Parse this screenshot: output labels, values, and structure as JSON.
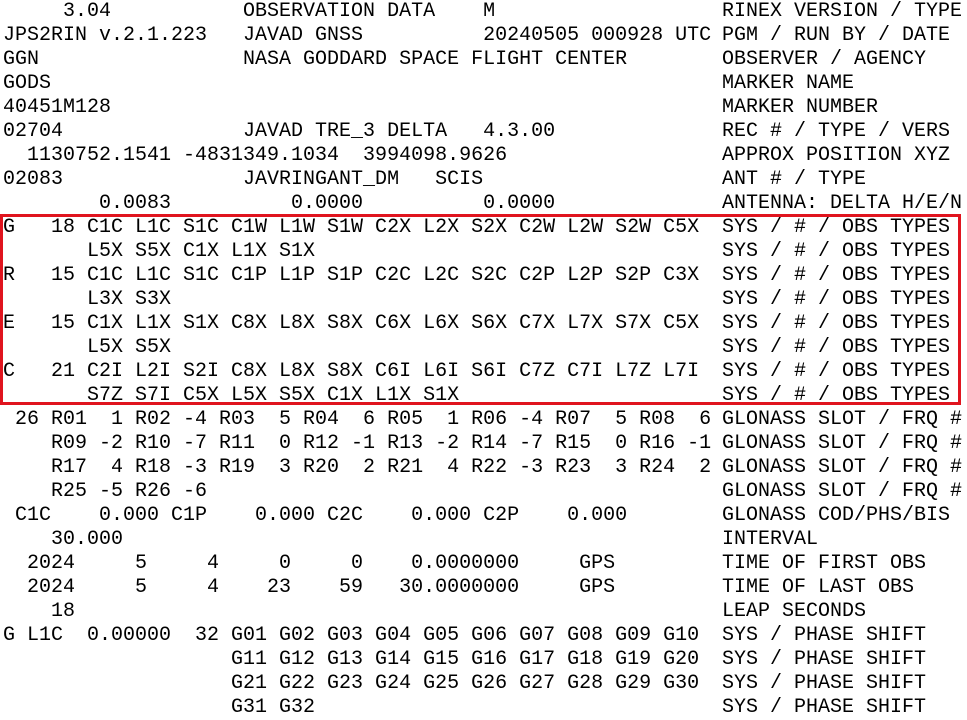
{
  "highlight_color": "#e0141e",
  "header_lines": [
    {
      "data": "     3.04           OBSERVATION DATA    M",
      "label": "RINEX VERSION / TYPE"
    },
    {
      "data": "JPS2RIN v.2.1.223   JAVAD GNSS          20240505 000928 UTC",
      "label": "PGM / RUN BY / DATE"
    },
    {
      "data": "GGN                 NASA GODDARD SPACE FLIGHT CENTER",
      "label": "OBSERVER / AGENCY"
    },
    {
      "data": "GODS",
      "label": "MARKER NAME"
    },
    {
      "data": "40451M128",
      "label": "MARKER NUMBER"
    },
    {
      "data": "02704               JAVAD TRE_3 DELTA   4.3.00",
      "label": "REC # / TYPE / VERS"
    },
    {
      "data": "  1130752.1541 -4831349.1034  3994098.9626",
      "label": "APPROX POSITION XYZ"
    },
    {
      "data": "02083               JAVRINGANT_DM   SCIS",
      "label": "ANT # / TYPE"
    },
    {
      "data": "        0.0083          0.0000          0.0000",
      "label": "ANTENNA: DELTA H/E/N"
    },
    {
      "data": "G   18 C1C L1C S1C C1W L1W S1W C2X L2X S2X C2W L2W S2W C5X",
      "label": "SYS / # / OBS TYPES"
    },
    {
      "data": "       L5X S5X C1X L1X S1X",
      "label": "SYS / # / OBS TYPES"
    },
    {
      "data": "R   15 C1C L1C S1C C1P L1P S1P C2C L2C S2C C2P L2P S2P C3X",
      "label": "SYS / # / OBS TYPES"
    },
    {
      "data": "       L3X S3X",
      "label": "SYS / # / OBS TYPES"
    },
    {
      "data": "E   15 C1X L1X S1X C8X L8X S8X C6X L6X S6X C7X L7X S7X C5X",
      "label": "SYS / # / OBS TYPES"
    },
    {
      "data": "       L5X S5X",
      "label": "SYS / # / OBS TYPES"
    },
    {
      "data": "C   21 C2I L2I S2I C8X L8X S8X C6I L6I S6I C7Z C7I L7Z L7I",
      "label": "SYS / # / OBS TYPES"
    },
    {
      "data": "       S7Z S7I C5X L5X S5X C1X L1X S1X",
      "label": "SYS / # / OBS TYPES"
    },
    {
      "data": " 26 R01  1 R02 -4 R03  5 R04  6 R05  1 R06 -4 R07  5 R08  6",
      "label": "GLONASS SLOT / FRQ #"
    },
    {
      "data": "    R09 -2 R10 -7 R11  0 R12 -1 R13 -2 R14 -7 R15  0 R16 -1",
      "label": "GLONASS SLOT / FRQ #"
    },
    {
      "data": "    R17  4 R18 -3 R19  3 R20  2 R21  4 R22 -3 R23  3 R24  2",
      "label": "GLONASS SLOT / FRQ #"
    },
    {
      "data": "    R25 -5 R26 -6",
      "label": "GLONASS SLOT / FRQ #"
    },
    {
      "data": " C1C    0.000 C1P    0.000 C2C    0.000 C2P    0.000",
      "label": "GLONASS COD/PHS/BIS"
    },
    {
      "data": "    30.000",
      "label": "INTERVAL"
    },
    {
      "data": "  2024     5     4     0     0    0.0000000     GPS",
      "label": "TIME OF FIRST OBS"
    },
    {
      "data": "  2024     5     4    23    59   30.0000000     GPS",
      "label": "TIME OF LAST OBS"
    },
    {
      "data": "    18",
      "label": "LEAP SECONDS"
    },
    {
      "data": "G L1C  0.00000  32 G01 G02 G03 G04 G05 G06 G07 G08 G09 G10",
      "label": "SYS / PHASE SHIFT"
    },
    {
      "data": "                   G11 G12 G13 G14 G15 G16 G17 G18 G19 G20",
      "label": "SYS / PHASE SHIFT"
    },
    {
      "data": "                   G21 G22 G23 G24 G25 G26 G27 G28 G29 G30",
      "label": "SYS / PHASE SHIFT"
    },
    {
      "data": "                   G31 G32",
      "label": "SYS / PHASE SHIFT"
    }
  ]
}
